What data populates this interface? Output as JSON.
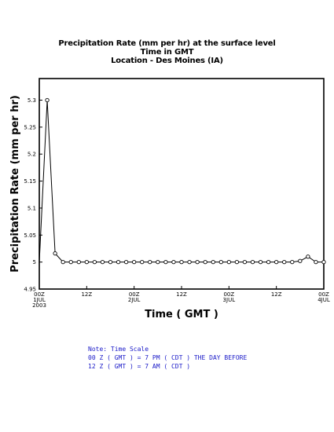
{
  "chart_data": {
    "type": "line",
    "title": [
      "Precipitation Rate (mm per hr) at the surface level",
      "Time in GMT",
      "Location - Des Moines (IA)"
    ],
    "xlabel": "Time ( GMT )",
    "ylabel": "Precipitation Rate (mm per hr)",
    "ylim": [
      4.95,
      5.34
    ],
    "xlim_hours": [
      0,
      72
    ],
    "y_ticks": [
      4.95,
      5,
      5.05,
      5.1,
      5.15,
      5.2,
      5.25,
      5.3
    ],
    "y_tick_labels": [
      "4.95",
      "5",
      "5.05",
      "5.1",
      "5.15",
      "5.2",
      "5.25",
      "5.3"
    ],
    "x_ticks": [
      {
        "hour": 0,
        "lines": [
          "00Z",
          "1JUL",
          "2003"
        ]
      },
      {
        "hour": 12,
        "lines": [
          "12Z"
        ]
      },
      {
        "hour": 24,
        "lines": [
          "00Z",
          "2JUL"
        ]
      },
      {
        "hour": 36,
        "lines": [
          "12Z"
        ]
      },
      {
        "hour": 48,
        "lines": [
          "00Z",
          "3JUL"
        ]
      },
      {
        "hour": 60,
        "lines": [
          "12Z"
        ]
      },
      {
        "hour": 72,
        "lines": [
          "00Z",
          "4JUL"
        ]
      }
    ],
    "grid": false,
    "series": [
      {
        "x": [
          0,
          2,
          4,
          6,
          8,
          10,
          12,
          14,
          16,
          18,
          20,
          22,
          24,
          26,
          28,
          30,
          32,
          34,
          36,
          38,
          40,
          42,
          44,
          46,
          48,
          50,
          52,
          54,
          56,
          58,
          60,
          62,
          64,
          66,
          68,
          70,
          72
        ],
        "values": [
          5.0,
          5.3,
          5.016,
          5.0,
          5.0,
          5.0,
          5.0,
          5.0,
          5.0,
          5.0,
          5.0,
          5.0,
          5.0,
          5.0,
          5.0,
          5.0,
          5.0,
          5.0,
          5.0,
          5.0,
          5.0,
          5.0,
          5.0,
          5.0,
          5.0,
          5.0,
          5.0,
          5.0,
          5.0,
          5.0,
          5.0,
          5.0,
          5.0,
          5.002,
          5.01,
          5.0,
          5.0
        ],
        "markers": [
          false,
          true,
          true,
          true,
          true,
          true,
          true,
          true,
          true,
          true,
          true,
          true,
          true,
          true,
          true,
          true,
          true,
          true,
          true,
          true,
          true,
          true,
          true,
          true,
          true,
          true,
          true,
          true,
          true,
          true,
          true,
          true,
          true,
          true,
          true,
          true,
          true
        ]
      }
    ]
  },
  "note": [
    "Note: Time Scale",
    "00 Z ( GMT ) = 7 PM ( CDT ) THE DAY BEFORE",
    "12 Z ( GMT ) = 7 AM ( CDT )"
  ],
  "colors": {
    "note_text": "#1a1ac8",
    "line": "#000000",
    "axes": "#000000"
  }
}
